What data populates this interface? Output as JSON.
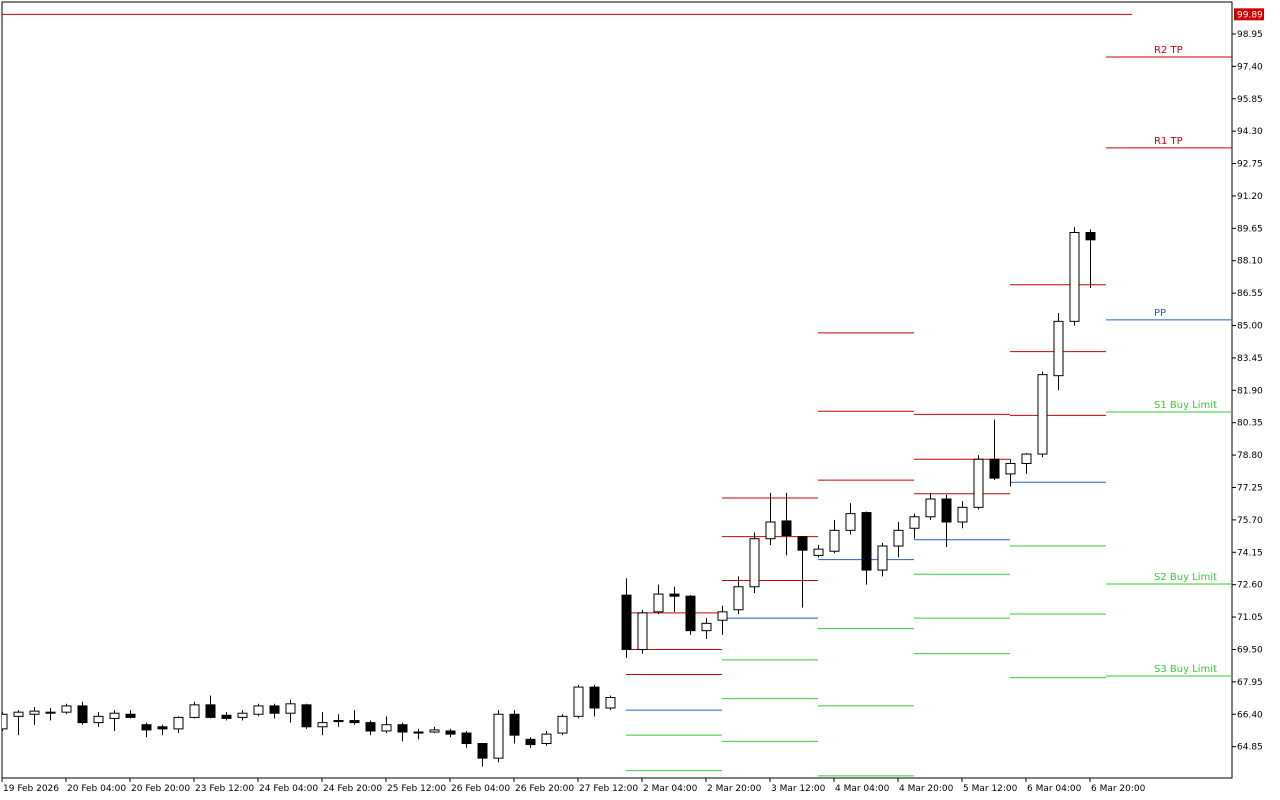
{
  "chart_data": {
    "type": "candlestick",
    "categories": [
      "19 Feb 2026",
      null,
      null,
      null,
      "20 Feb 04:00",
      null,
      null,
      null,
      "20 Feb 20:00",
      null,
      null,
      null,
      "23 Feb 12:00",
      null,
      null,
      null,
      "24 Feb 04:00",
      null,
      null,
      null,
      "24 Feb 20:00",
      null,
      null,
      null,
      "25 Feb 12:00",
      null,
      null,
      null,
      "26 Feb 04:00",
      null,
      null,
      null,
      "26 Feb 20:00",
      null,
      null,
      null,
      "27 Feb 12:00",
      null,
      null,
      null,
      "2 Mar 04:00",
      null,
      null,
      null,
      "2 Mar 20:00",
      null,
      null,
      null,
      "3 Mar 12:00",
      null,
      null,
      null,
      "4 Mar 04:00",
      null,
      null,
      null,
      "4 Mar 20:00",
      null,
      null,
      null,
      "5 Mar 12:00",
      null,
      null,
      null,
      "6 Mar 04:00",
      null,
      null,
      null,
      "6 Mar 20:00"
    ],
    "open": [
      65.7,
      66.3,
      66.4,
      66.45,
      66.5,
      66.8,
      66.0,
      66.2,
      66.4,
      65.9,
      65.8,
      65.7,
      66.25,
      66.85,
      66.35,
      66.25,
      66.4,
      66.8,
      66.45,
      66.85,
      65.8,
      66.05,
      66.1,
      66.0,
      65.6,
      65.9,
      65.55,
      65.55,
      65.6,
      65.5,
      65.0,
      64.3,
      66.4,
      65.2,
      65.0,
      65.5,
      66.3,
      67.7,
      66.7,
      72.1,
      69.5,
      71.3,
      72.15,
      72.05,
      70.4,
      70.9,
      71.4,
      72.5,
      74.8,
      75.65,
      74.9,
      74.0,
      74.2,
      75.2,
      76.05,
      73.3,
      74.45,
      75.3,
      75.85,
      76.7,
      75.6,
      76.3,
      78.6,
      77.9,
      78.4,
      78.85,
      82.6,
      85.2,
      89.45
    ],
    "high": [
      66.5,
      66.6,
      66.75,
      66.7,
      66.9,
      67.0,
      66.5,
      66.6,
      66.6,
      66.0,
      65.9,
      66.3,
      67.0,
      67.3,
      66.5,
      66.6,
      66.9,
      66.9,
      67.1,
      66.9,
      66.5,
      66.4,
      66.6,
      66.1,
      66.3,
      66.0,
      65.7,
      65.8,
      65.7,
      65.6,
      65.0,
      66.6,
      66.6,
      65.3,
      65.6,
      66.4,
      67.8,
      67.8,
      67.3,
      72.9,
      71.4,
      72.6,
      72.5,
      72.1,
      71.0,
      71.6,
      73.0,
      75.1,
      77.0,
      77.0,
      74.9,
      74.5,
      75.7,
      76.5,
      76.1,
      74.6,
      75.6,
      76.0,
      77.0,
      76.9,
      76.6,
      78.8,
      80.5,
      78.6,
      78.9,
      82.8,
      85.6,
      89.7,
      89.6
    ],
    "low": [
      65.6,
      65.4,
      65.9,
      66.1,
      66.4,
      65.9,
      65.8,
      65.6,
      66.2,
      65.3,
      65.4,
      65.5,
      66.2,
      66.2,
      66.1,
      66.1,
      66.3,
      66.2,
      66.0,
      65.7,
      65.4,
      65.8,
      65.9,
      65.4,
      65.5,
      65.1,
      65.2,
      65.5,
      65.3,
      64.8,
      63.9,
      64.1,
      65.0,
      64.8,
      64.9,
      65.4,
      66.2,
      66.3,
      66.6,
      69.1,
      69.3,
      71.2,
      71.3,
      70.2,
      70.0,
      70.2,
      71.2,
      72.2,
      74.5,
      74.0,
      71.5,
      73.9,
      74.1,
      75.0,
      72.6,
      73.0,
      73.9,
      74.8,
      75.7,
      74.4,
      75.3,
      76.2,
      77.6,
      77.3,
      77.9,
      78.7,
      81.9,
      85.0,
      86.8
    ],
    "close": [
      66.4,
      66.5,
      66.55,
      66.5,
      66.8,
      66.0,
      66.3,
      66.45,
      66.25,
      65.65,
      65.7,
      66.25,
      66.85,
      66.25,
      66.2,
      66.45,
      66.8,
      66.45,
      66.9,
      65.8,
      66.0,
      66.1,
      66.0,
      65.6,
      65.9,
      65.55,
      65.5,
      65.65,
      65.45,
      65.0,
      64.3,
      66.4,
      65.4,
      64.95,
      65.45,
      66.3,
      67.7,
      66.7,
      67.2,
      69.5,
      71.25,
      72.15,
      72.05,
      70.4,
      70.75,
      71.3,
      72.5,
      74.8,
      75.6,
      74.95,
      74.25,
      74.3,
      75.2,
      76.0,
      73.3,
      74.45,
      75.2,
      75.85,
      76.7,
      75.6,
      76.3,
      78.6,
      77.7,
      78.4,
      78.85,
      82.65,
      85.2,
      89.45,
      89.1
    ],
    "bull_color": "#ffffff",
    "bear_color": "#000000",
    "ylim": [
      63.35,
      100.48
    ],
    "yticks": [
      98.95,
      {
        "value": 97.4,
        "label": "97.40"
      },
      95.85,
      {
        "value": 94.3,
        "label": "94.30"
      },
      92.75,
      {
        "value": 91.2,
        "label": "91.20"
      },
      89.65,
      {
        "value": 88.1,
        "label": "88.10"
      },
      86.55,
      {
        "value": 85,
        "label": "85.00"
      },
      83.45,
      {
        "value": 81.9,
        "label": "81.90"
      },
      80.35,
      {
        "value": 78.8,
        "label": "78.80"
      },
      77.25,
      {
        "value": 75.7,
        "label": "75.70"
      },
      74.15,
      {
        "value": 72.6,
        "label": "72.60"
      },
      71.05,
      {
        "value": 69.5,
        "label": "69.50"
      },
      67.95,
      {
        "value": 66.4,
        "label": "66.40"
      },
      64.85
    ],
    "price_line": {
      "value": 99.89,
      "label": "99.89",
      "color": "#cc0000"
    },
    "level_colors": {
      "red": "#cc0000",
      "blue": "#1f5fbf",
      "green": "#33cc33"
    },
    "pivot_days": [
      {
        "x": [
          39,
          45
        ],
        "red": [
          71.25,
          69.5,
          68.3
        ],
        "blue": [
          66.6
        ],
        "green": [
          65.4,
          63.7
        ]
      },
      {
        "x": [
          45,
          51
        ],
        "red": [
          76.75,
          74.9,
          72.8
        ],
        "blue": [
          71.0
        ],
        "green": [
          69.0,
          67.15,
          65.1
        ]
      },
      {
        "x": [
          51,
          57
        ],
        "red": [
          84.65,
          80.9,
          77.6
        ],
        "blue": [
          73.8
        ],
        "green": [
          70.5,
          66.8,
          63.45
        ]
      },
      {
        "x": [
          57,
          63
        ],
        "red": [
          80.75,
          78.6,
          76.95
        ],
        "blue": [
          74.75
        ],
        "green": [
          73.1,
          71.0,
          69.3
        ]
      },
      {
        "x": [
          63,
          69
        ],
        "red": [
          86.95,
          83.75,
          80.7
        ],
        "blue": [
          77.5
        ],
        "green": [
          74.45,
          71.2,
          68.15
        ]
      }
    ],
    "levels": [
      {
        "name": "R2 TP",
        "value": 97.85,
        "color": "#cc0000"
      },
      {
        "name": "R1 TP",
        "value": 93.5,
        "color": "#cc0000"
      },
      {
        "name": "PP",
        "value": 85.27,
        "color": "#1f5fbf"
      },
      {
        "name": "S1 Buy Limit",
        "value": 80.86,
        "color": "#33cc33"
      },
      {
        "name": "S2 Buy Limit",
        "value": 72.63,
        "color": "#33cc33"
      },
      {
        "name": "S3 Buy Limit",
        "value": 68.23,
        "color": "#33cc33"
      }
    ]
  }
}
